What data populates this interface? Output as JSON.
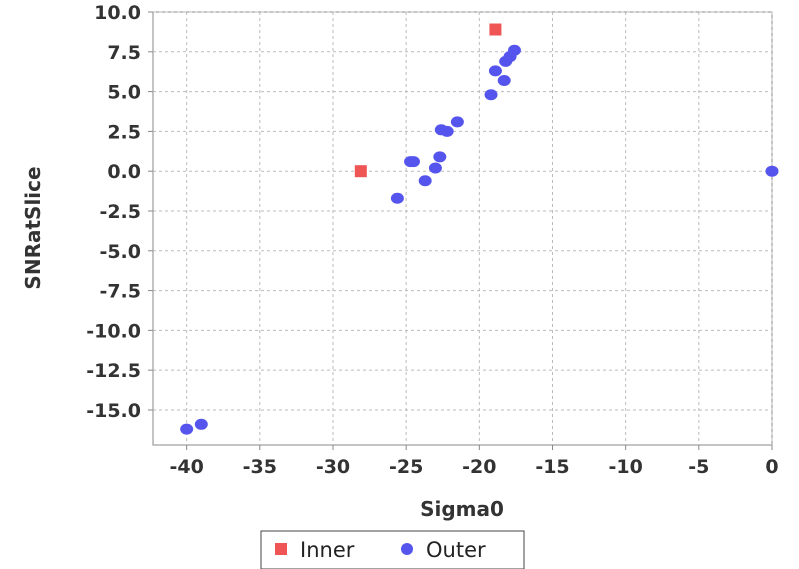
{
  "chart_data": {
    "type": "scatter",
    "xlabel": "Sigma0",
    "ylabel": "SNRatSlice",
    "xlim": [
      -42.3,
      0
    ],
    "ylim": [
      -17.2,
      10.0
    ],
    "x_ticks": [
      -40,
      -35,
      -30,
      -25,
      -20,
      -15,
      -10,
      -5,
      0
    ],
    "x_tick_labels": [
      "-40",
      "-35",
      "-30",
      "-25",
      "-20",
      "-15",
      "-10",
      "-5",
      "0"
    ],
    "y_ticks": [
      10.0,
      7.5,
      5.0,
      2.5,
      0.0,
      -2.5,
      -5.0,
      -7.5,
      -10.0,
      -12.5,
      -15.0
    ],
    "y_tick_labels": [
      "10.0",
      "7.5",
      "5.0",
      "2.5",
      "0.0",
      "-2.5",
      "-5.0",
      "-7.5",
      "-10.0",
      "-12.5",
      "-15.0"
    ],
    "grid": true,
    "legend_position": "bottom",
    "series": [
      {
        "name": "Inner",
        "color": "#ef5555",
        "marker": "square",
        "points": [
          [
            -28.1,
            0.0
          ],
          [
            -18.9,
            8.9
          ]
        ]
      },
      {
        "name": "Outer",
        "color": "#5555ee",
        "marker": "circle",
        "points": [
          [
            -40.0,
            -16.2
          ],
          [
            -39.0,
            -15.9
          ],
          [
            -25.6,
            -1.7
          ],
          [
            -24.7,
            0.6
          ],
          [
            -24.5,
            0.6
          ],
          [
            -23.7,
            -0.6
          ],
          [
            -23.0,
            0.2
          ],
          [
            -22.7,
            0.9
          ],
          [
            -22.6,
            2.6
          ],
          [
            -22.2,
            2.5
          ],
          [
            -21.5,
            3.1
          ],
          [
            -19.2,
            4.8
          ],
          [
            -18.9,
            6.3
          ],
          [
            -18.3,
            5.7
          ],
          [
            -18.2,
            6.9
          ],
          [
            -17.9,
            7.2
          ],
          [
            -17.6,
            7.6
          ],
          [
            0.0,
            0.0
          ]
        ]
      }
    ]
  }
}
